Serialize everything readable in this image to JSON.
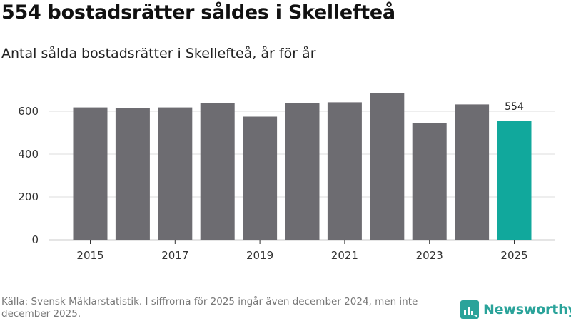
{
  "header": {
    "title": "554 bostadsrätter såldes i Skellefteå",
    "subtitle": "Antal sålda bostadsrätter i Skellefteå, år för år"
  },
  "chart_data": {
    "type": "bar",
    "categories": [
      "2015",
      "2016",
      "2017",
      "2018",
      "2019",
      "2020",
      "2021",
      "2022",
      "2023",
      "2024",
      "2025"
    ],
    "values": [
      618,
      614,
      618,
      638,
      575,
      638,
      642,
      685,
      544,
      632,
      554
    ],
    "x_tick_labels": [
      "2015",
      "2017",
      "2019",
      "2021",
      "2023",
      "2025"
    ],
    "y_ticks": [
      0,
      200,
      400,
      600
    ],
    "y_tick_labels": [
      "0",
      "200",
      "400",
      "600"
    ],
    "ylim": [
      0,
      700
    ],
    "highlight_category": "2025",
    "highlight_label": "554",
    "colors": {
      "bar": "#6d6c71",
      "highlight": "#11a89c",
      "grid": "#dddddd",
      "axis": "#333333"
    },
    "grid": true,
    "xlabel": "",
    "ylabel": ""
  },
  "footer": {
    "source": "Källa: Svensk Mäklarstatistik. I siffrorna för 2025 ingår även december 2024, men inte december 2025.",
    "brand_name": "Newsworthy",
    "brand_color": "#2aa39a",
    "brand_icon": "newsworthy-logo-icon"
  }
}
